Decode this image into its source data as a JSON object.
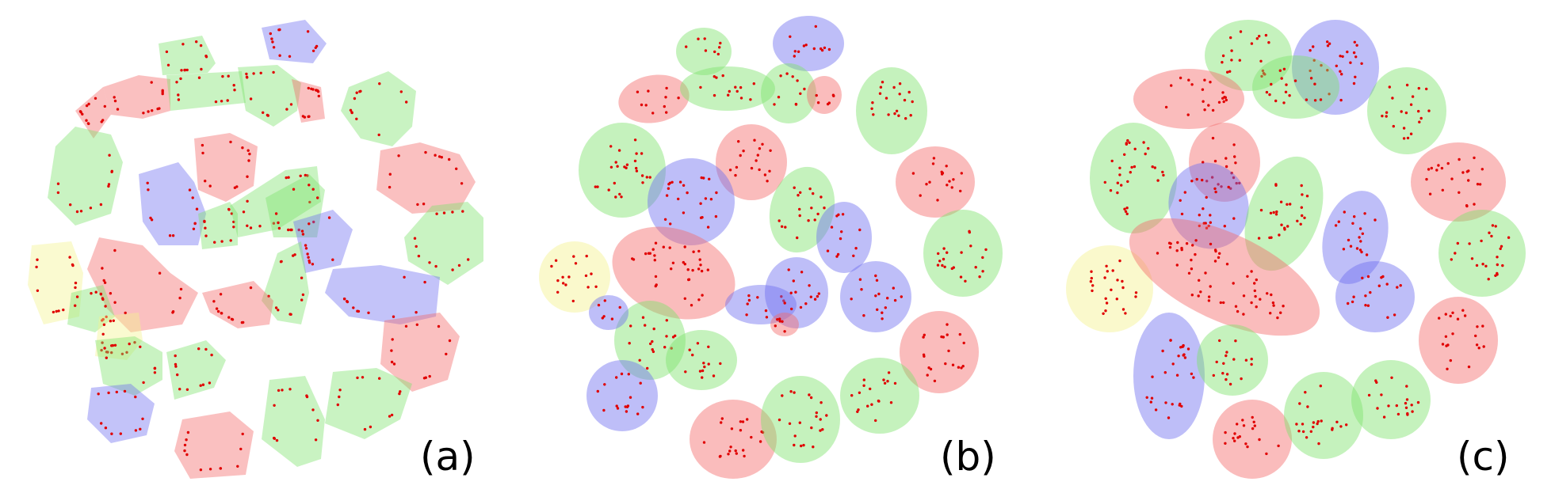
{
  "figure": {
    "panels": [
      {
        "label": "(a)"
      },
      {
        "label": "(b)"
      },
      {
        "label": "(c)"
      }
    ],
    "colors": {
      "red": "#f46a6a",
      "green": "#7fe26d",
      "blue": "#6f6ff0",
      "yellow": "#f3f28f",
      "dot": "#e00000"
    }
  }
}
